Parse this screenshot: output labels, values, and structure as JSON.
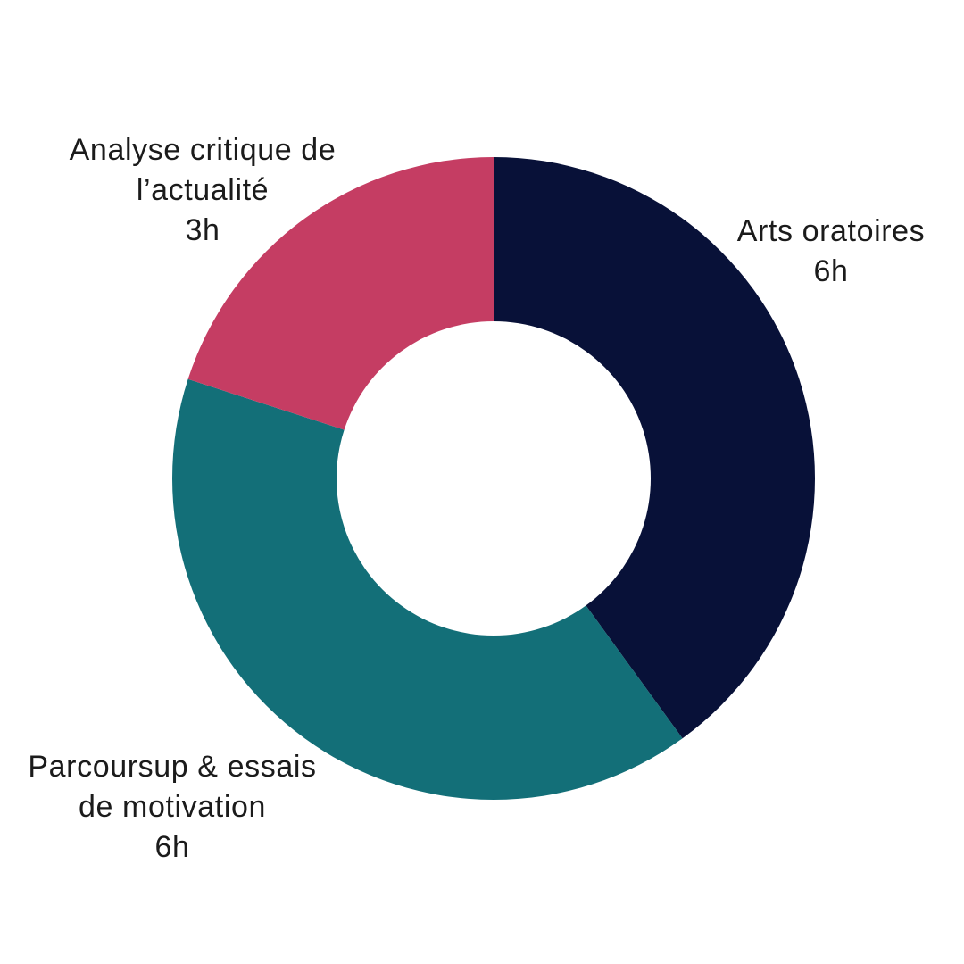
{
  "chart_data": {
    "type": "pie",
    "variant": "donut",
    "title": "",
    "unit": "h",
    "total_value": 15,
    "start_angle_deg": 0,
    "direction": "clockwise",
    "inner_radius_ratio": 0.49,
    "background_color": "#ffffff",
    "text_color": "#1b1b1b",
    "legend_position": "labels-outside",
    "slices": [
      {
        "label": "Arts oratoires",
        "value": 6,
        "value_label": "6h",
        "color": "#081138",
        "label_lines": [
          "Arts oratoires",
          "6h"
        ]
      },
      {
        "label": "Parcoursup & essais de motivation",
        "value": 6,
        "value_label": "6h",
        "color": "#136f78",
        "label_lines": [
          "Parcoursup & essais",
          "de motivation",
          "6h"
        ]
      },
      {
        "label": "Analyse critique de l’actualité",
        "value": 3,
        "value_label": "3h",
        "color": "#c53d63",
        "label_lines": [
          "Analyse critique de",
          "l’actualité",
          "3h"
        ]
      }
    ]
  }
}
